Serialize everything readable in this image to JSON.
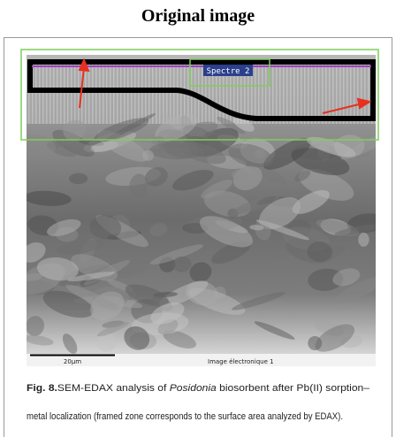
{
  "header": {
    "title": "Original image"
  },
  "figure": {
    "spectrum_label": "Spectre 2",
    "scale_label": "20µm",
    "image_label": "Image électronique 1"
  },
  "caption": {
    "label": "Fig. 8.",
    "line1_before": "SEM-EDAX analysis of ",
    "species": "Posidonia",
    "line1_after": " biosorbent after Pb(II) sorption–",
    "line2": "metal localization (framed zone corresponds to the surface area analyzed by EDAX)."
  }
}
